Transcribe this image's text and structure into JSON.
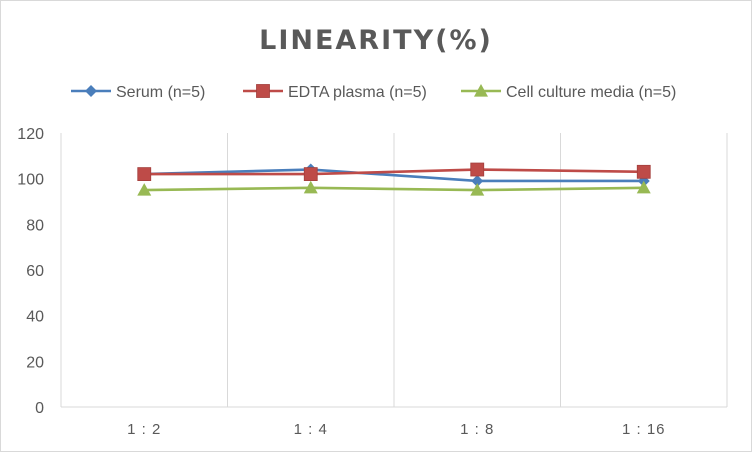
{
  "chart_data": {
    "type": "line",
    "title": "LINEARITY(%)",
    "xlabel": "",
    "ylabel": "",
    "categories": [
      "1:2",
      "1:4",
      "1:8",
      "1:16"
    ],
    "ylim": [
      0,
      120
    ],
    "yticks": [
      0,
      20,
      40,
      60,
      80,
      100,
      120
    ],
    "grid": "vertical",
    "legend_position": "top",
    "series": [
      {
        "name": "Serum (n=5)",
        "values": [
          102,
          104,
          99,
          99
        ],
        "color": "#4a7ebb",
        "marker": "diamond"
      },
      {
        "name": "EDTA plasma (n=5)",
        "values": [
          102,
          102,
          104,
          103
        ],
        "color": "#be4b48",
        "marker": "square"
      },
      {
        "name": "Cell culture media (n=5)",
        "values": [
          95,
          96,
          95,
          96
        ],
        "color": "#98b954",
        "marker": "triangle"
      }
    ]
  }
}
